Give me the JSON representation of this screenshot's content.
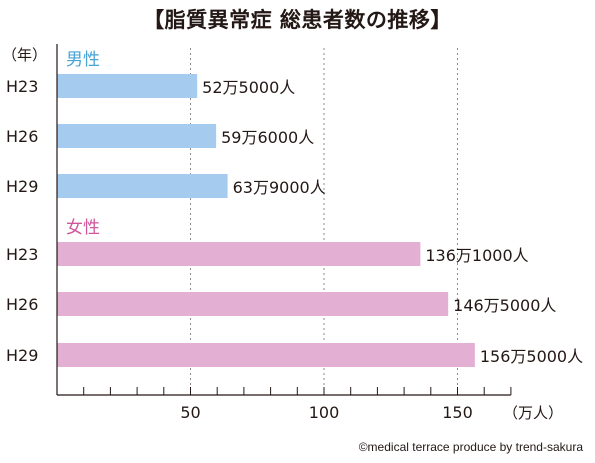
{
  "chart_data": {
    "type": "bar",
    "orientation": "horizontal",
    "title": "【脂質異常症 総患者数の推移】",
    "y_unit": "（年）",
    "x_unit": "（万人）",
    "xlim": [
      0,
      150
    ],
    "xticks": [
      50,
      100,
      150
    ],
    "grid": "vertical dotted",
    "groups": [
      {
        "name": "男性",
        "color": "#4aa3d6",
        "bar_color": "#a5cbee",
        "bars": [
          {
            "year": "H23",
            "value": 52.5,
            "label": "52万5000人"
          },
          {
            "year": "H26",
            "value": 59.6,
            "label": "59万6000人"
          },
          {
            "year": "H29",
            "value": 63.9,
            "label": "63万9000人"
          }
        ]
      },
      {
        "name": "女性",
        "color": "#d1569a",
        "bar_color": "#e3afd3",
        "bars": [
          {
            "year": "H23",
            "value": 136.1,
            "label": "136万1000人"
          },
          {
            "year": "H26",
            "value": 146.5,
            "label": "146万5000人"
          },
          {
            "year": "H29",
            "value": 156.5,
            "label": "156万5000人"
          }
        ]
      }
    ]
  },
  "credit": "©medical terrace produce by trend-sakura"
}
